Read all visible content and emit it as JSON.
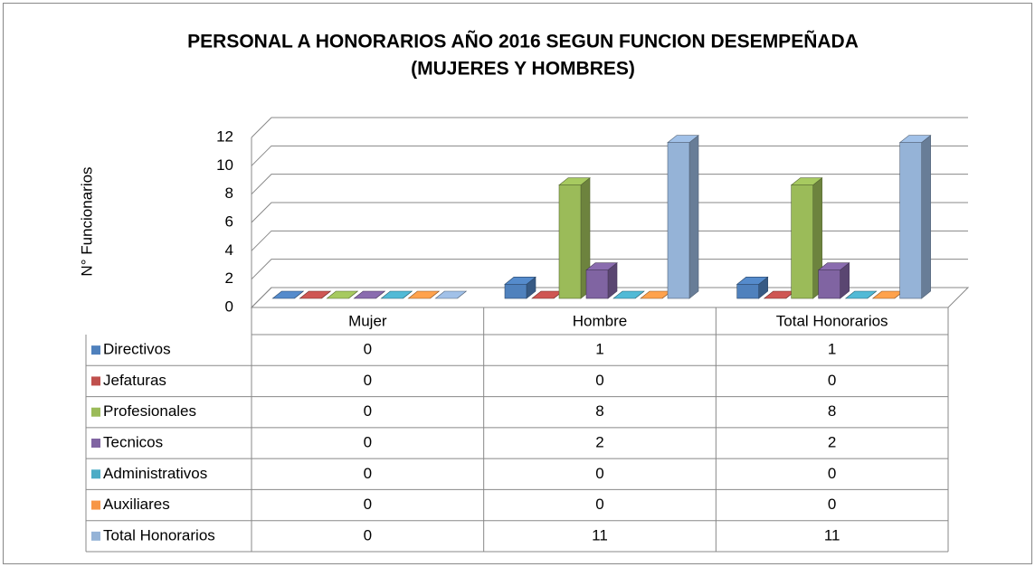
{
  "chart_data": {
    "type": "bar3d",
    "title": "PERSONAL A HONORARIOS  AÑO 2016 SEGUN FUNCION DESEMPEÑADA",
    "subtitle": "(MUJERES Y HOMBRES)",
    "y_label": "N° Funcionarios",
    "categories": [
      "Mujer",
      "Hombre",
      "Total Honorarios"
    ],
    "series": [
      {
        "name": "Directivos",
        "color": "#4f81bd",
        "values": [
          0,
          1,
          1
        ]
      },
      {
        "name": "Jefaturas",
        "color": "#c0504d",
        "values": [
          0,
          0,
          0
        ]
      },
      {
        "name": "Profesionales",
        "color": "#9bbb59",
        "values": [
          0,
          8,
          8
        ]
      },
      {
        "name": "Tecnicos",
        "color": "#8064a2",
        "values": [
          0,
          2,
          2
        ]
      },
      {
        "name": "Administrativos",
        "color": "#4bacc6",
        "values": [
          0,
          0,
          0
        ]
      },
      {
        "name": "Auxiliares",
        "color": "#f79646",
        "values": [
          0,
          0,
          0
        ]
      },
      {
        "name": "Total Honorarios",
        "color": "#95b3d7",
        "values": [
          0,
          11,
          11
        ]
      }
    ],
    "ylim": [
      0,
      12
    ],
    "yticks": [
      0,
      2,
      4,
      6,
      8,
      10,
      12
    ],
    "grid": true,
    "data_table": true
  }
}
